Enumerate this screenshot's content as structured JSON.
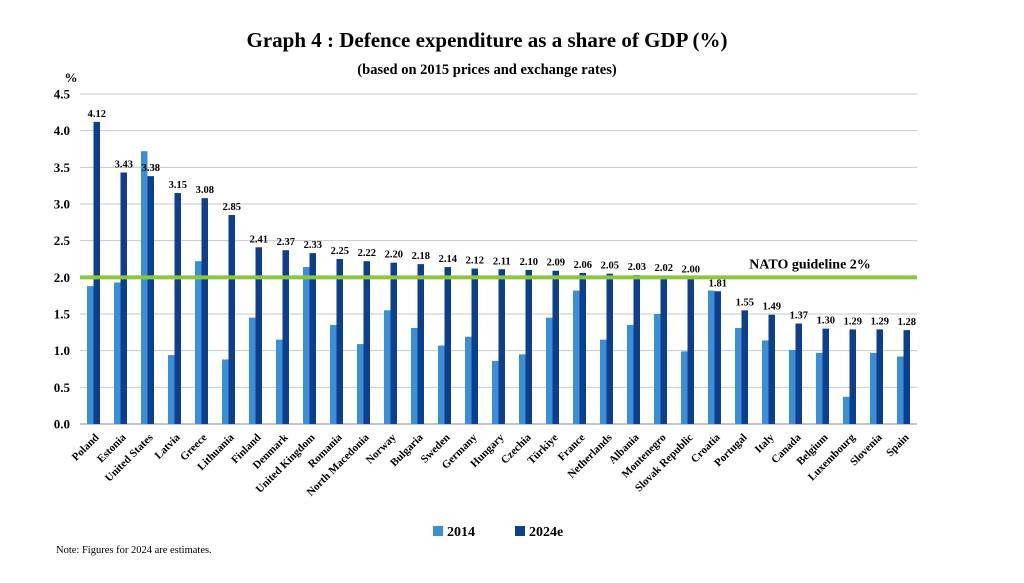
{
  "chart_data": {
    "type": "bar",
    "title": "Graph 4 : Defence expenditure as a share of GDP (%)",
    "subtitle": "(based on 2015 prices and exchange rates)",
    "ylabel": "%",
    "ylim": [
      0,
      4.5
    ],
    "yticks": [
      "0.0",
      "0.5",
      "1.0",
      "1.5",
      "2.0",
      "2.5",
      "3.0",
      "3.5",
      "4.0",
      "4.5"
    ],
    "grid": true,
    "legend_position": "bottom",
    "categories": [
      "Poland",
      "Estonia",
      "United States",
      "Latvia",
      "Greece",
      "Lithuania",
      "Finland",
      "Denmark",
      "United Kingdom",
      "Romania",
      "North Macedonia",
      "Norway",
      "Bulgaria",
      "Sweden",
      "Germany",
      "Hungary",
      "Czechia",
      "Türkiye",
      "France",
      "Netherlands",
      "Albania",
      "Montenegro",
      "Slovak Republic",
      "Croatia",
      "Portugal",
      "Italy",
      "Canada",
      "Belgium",
      "Luxembourg",
      "Slovenia",
      "Spain"
    ],
    "series": [
      {
        "name": "2014",
        "color": "#3a8fd6",
        "values": [
          1.88,
          1.93,
          3.72,
          0.94,
          2.22,
          0.88,
          1.45,
          1.15,
          2.14,
          1.35,
          1.09,
          1.55,
          1.31,
          1.07,
          1.19,
          0.86,
          0.95,
          1.45,
          1.82,
          1.15,
          1.35,
          1.5,
          0.99,
          1.82,
          1.31,
          1.14,
          1.01,
          0.97,
          0.37,
          0.97,
          0.92
        ]
      },
      {
        "name": "2024e",
        "color": "#0d3f8c",
        "values": [
          4.12,
          3.43,
          3.38,
          3.15,
          3.08,
          2.85,
          2.41,
          2.37,
          2.33,
          2.25,
          2.22,
          2.2,
          2.18,
          2.14,
          2.12,
          2.11,
          2.1,
          2.09,
          2.06,
          2.05,
          2.03,
          2.02,
          2.0,
          1.81,
          1.55,
          1.49,
          1.37,
          1.3,
          1.29,
          1.29,
          1.28
        ],
        "labels": [
          "4.12",
          "3.43",
          "3.38",
          "3.15",
          "3.08",
          "2.85",
          "2.41",
          "2.37",
          "2.33",
          "2.25",
          "2.22",
          "2.20",
          "2.18",
          "2.14",
          "2.12",
          "2.11",
          "2.10",
          "2.09",
          "2.06",
          "2.05",
          "2.03",
          "2.02",
          "2.00",
          "1.81",
          "1.55",
          "1.49",
          "1.37",
          "1.30",
          "1.29",
          "1.29",
          "1.28"
        ]
      }
    ],
    "reference_line": {
      "value": 2.0,
      "label": "NATO guideline 2%",
      "color": "#8cc63f"
    }
  },
  "note": "Note: Figures for 2024 are estimates."
}
